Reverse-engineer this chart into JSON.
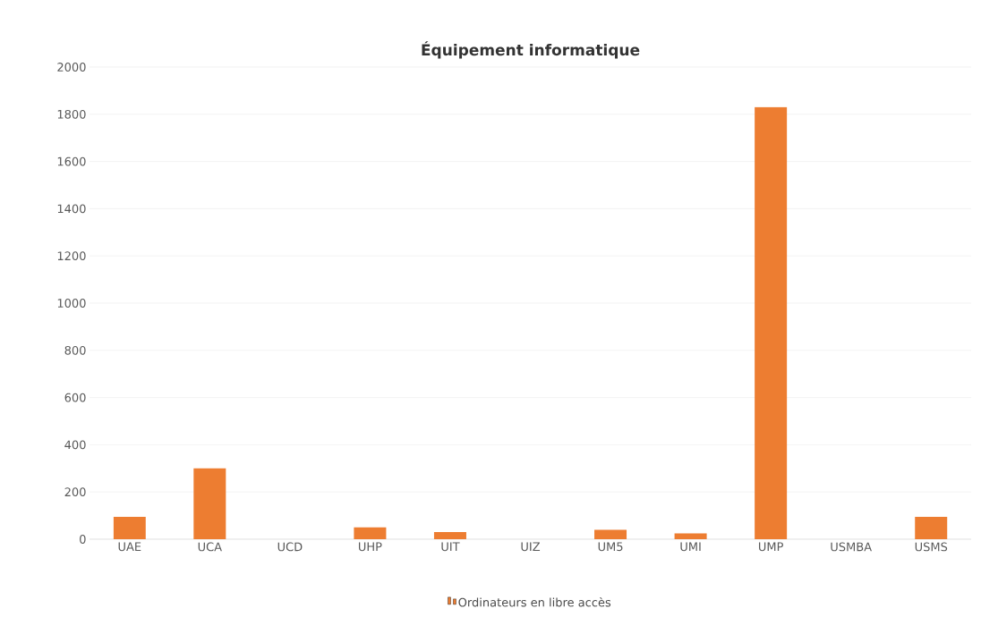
{
  "chart_data": {
    "type": "bar",
    "title": "Équipement informatique",
    "categories": [
      "UAE",
      "UCA",
      "UCD",
      "UHP",
      "UIT",
      "UIZ",
      "UM5",
      "UMI",
      "UMP",
      "USMBA",
      "USMS"
    ],
    "series": [
      {
        "name": "Ordinateurs en libre accès",
        "color": "#ed7d31",
        "values": [
          95,
          300,
          0,
          50,
          30,
          0,
          40,
          25,
          1830,
          0,
          95
        ]
      }
    ],
    "ylim": [
      0,
      2000
    ],
    "yticks": [
      0,
      200,
      400,
      600,
      800,
      1000,
      1200,
      1400,
      1600,
      1800,
      2000
    ],
    "grid": "y",
    "legend": "bottom"
  }
}
